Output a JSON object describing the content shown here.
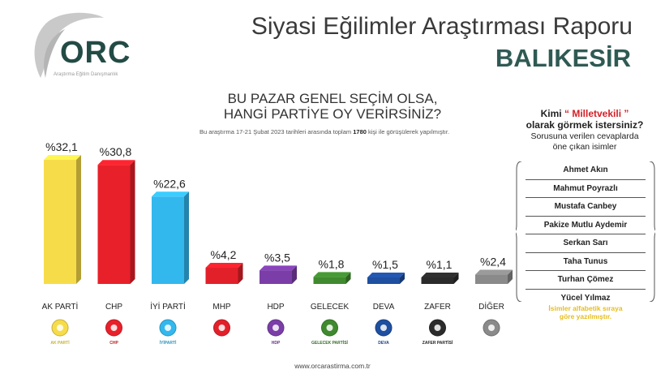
{
  "header": {
    "brand": "ORC",
    "brand_sub": "Araştırma Eğitim Danışmanlık",
    "title": "Siyasi Eğilimler Araştırması Raporu",
    "city": "BALIKESİR"
  },
  "question": {
    "line1": "BU PAZAR GENEL SEÇİM OLSA,",
    "line2": "HANGİ PARTİYE OY VERİRSİNİZ?"
  },
  "note": {
    "before": "Bu araştırma 17-21 Şubat 2023 tarihleri arasında toplam ",
    "count": "1780",
    "after": " kişi ile görüşülerek yapılmıştır."
  },
  "chart_data": {
    "type": "bar",
    "categories": [
      "AK PARTİ",
      "CHP",
      "İYİ PARTİ",
      "MHP",
      "HDP",
      "GELECEK",
      "DEVA",
      "ZAFER",
      "DİĞER"
    ],
    "values": [
      32.1,
      30.8,
      22.6,
      4.2,
      3.5,
      1.8,
      1.5,
      1.1,
      2.4
    ],
    "labels": [
      "%32,1",
      "%30,8",
      "%22,6",
      "%4,2",
      "%3,5",
      "%1,8",
      "%1,5",
      "%1,1",
      "%2,4"
    ],
    "colors": [
      "#f7dc4a",
      "#e8202a",
      "#33b8ee",
      "#e2202a",
      "#7b3ea8",
      "#3f8a2e",
      "#1e4fa0",
      "#2b2b2b",
      "#8a8a8a"
    ],
    "party_logo_text": [
      "AK PARTİ",
      "CHP",
      "İYİPARTİ",
      "",
      "HDP",
      "GELECEK PARTİSİ",
      "DEVA",
      "ZAFER PARTİSİ",
      ""
    ],
    "ylim": [
      0,
      35
    ]
  },
  "panel": {
    "head_pre": "Kimi",
    "head_red": "“ Milletvekili ”",
    "head_post": "olarak görmek istersiniz?",
    "sub1": "Sorusuna verilen cevaplarda",
    "sub2": "öne çıkan isimler",
    "names": [
      "Ahmet Akın",
      "Mahmut Poyrazlı",
      "Mustafa Canbey",
      "Pakize Mutlu Aydemir",
      "Serkan Sarı",
      "Taha Tunus",
      "Turhan Çömez",
      "Yücel Yılmaz"
    ],
    "foot1": "İsimler alfabetik sıraya",
    "foot2": "göre yazılmıştır."
  },
  "footer": {
    "url": "www.orcarastirma.com.tr"
  }
}
